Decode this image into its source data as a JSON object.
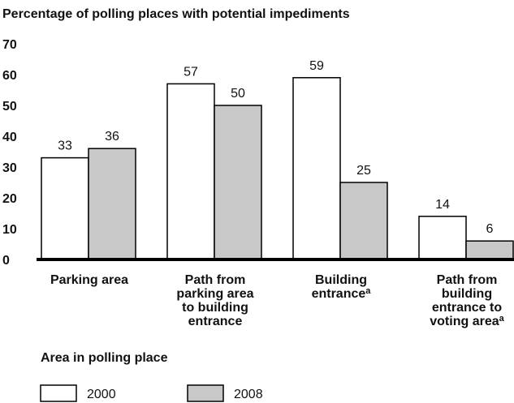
{
  "chart_data": {
    "type": "bar",
    "title": "Percentage of polling places with potential impediments",
    "xlabel": "Area in polling place",
    "ylabel": "",
    "ylim": [
      0,
      70
    ],
    "yticks": [
      "0",
      "10",
      "20",
      "30",
      "40",
      "50",
      "60",
      "70"
    ],
    "categories": [
      {
        "lines": [
          "Parking area"
        ],
        "sup": ""
      },
      {
        "lines": [
          "Path from",
          "parking area",
          "to building",
          "entrance"
        ],
        "sup": ""
      },
      {
        "lines": [
          "Building",
          "entrance"
        ],
        "sup": "a"
      },
      {
        "lines": [
          "Path from",
          "building",
          "entrance to",
          "voting area"
        ],
        "sup": "a"
      }
    ],
    "series": [
      {
        "name": "2000",
        "values": [
          33,
          57,
          59,
          14
        ],
        "color": "#ffffff"
      },
      {
        "name": "2008",
        "values": [
          36,
          50,
          25,
          6
        ],
        "color": "#c8c8c8"
      }
    ],
    "grid": false,
    "legend_position": "bottom-left"
  }
}
